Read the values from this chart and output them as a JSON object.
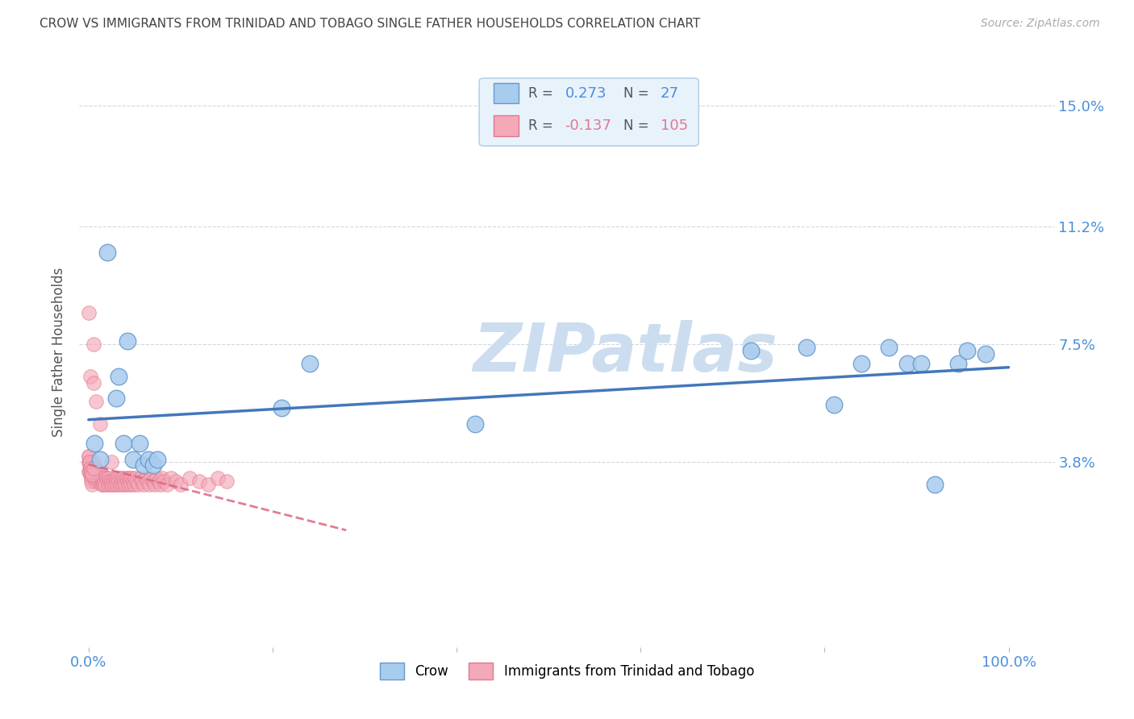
{
  "title": "CROW VS IMMIGRANTS FROM TRINIDAD AND TOBAGO SINGLE FATHER HOUSEHOLDS CORRELATION CHART",
  "source": "Source: ZipAtlas.com",
  "ylabel": "Single Father Households",
  "xlim": [
    -0.01,
    1.05
  ],
  "ylim": [
    -0.02,
    0.165
  ],
  "yticks": [
    0.038,
    0.075,
    0.112,
    0.15
  ],
  "yticklabels": [
    "3.8%",
    "7.5%",
    "11.2%",
    "15.0%"
  ],
  "xtick_left": "0.0%",
  "xtick_right": "100.0%",
  "grid_color": "#d0d8e0",
  "background_color": "#ffffff",
  "title_color": "#444444",
  "axis_tick_color": "#4a90d9",
  "crow_color": "#a8ccee",
  "crow_edge_color": "#6699cc",
  "trinidad_color": "#f4a8b8",
  "trinidad_edge_color": "#e07890",
  "trend_crow_color": "#4477bb",
  "trend_trinidad_color": "#dd6680",
  "legend_box_facecolor": "#e8f2fb",
  "legend_box_edgecolor": "#b8d0e8",
  "crow_R": 0.273,
  "crow_N": 27,
  "trinidad_R": -0.137,
  "trinidad_N": 105,
  "crow_x": [
    0.006,
    0.012,
    0.02,
    0.03,
    0.033,
    0.038,
    0.042,
    0.048,
    0.055,
    0.06,
    0.065,
    0.07,
    0.075,
    0.21,
    0.42,
    0.72,
    0.78,
    0.81,
    0.84,
    0.87,
    0.89,
    0.905,
    0.92,
    0.945,
    0.955,
    0.975,
    0.24
  ],
  "crow_y": [
    0.044,
    0.039,
    0.104,
    0.058,
    0.065,
    0.044,
    0.076,
    0.039,
    0.044,
    0.037,
    0.039,
    0.037,
    0.039,
    0.055,
    0.05,
    0.073,
    0.074,
    0.056,
    0.069,
    0.074,
    0.069,
    0.069,
    0.031,
    0.069,
    0.073,
    0.072,
    0.069
  ],
  "trinidad_x_dense": [
    0.0,
    0.0,
    0.0,
    0.001,
    0.001,
    0.001,
    0.002,
    0.002,
    0.003,
    0.003,
    0.003,
    0.004,
    0.004,
    0.005,
    0.005,
    0.005,
    0.006,
    0.006,
    0.007,
    0.007,
    0.007,
    0.008,
    0.008,
    0.009,
    0.009,
    0.01,
    0.01,
    0.011,
    0.011,
    0.012,
    0.012,
    0.013,
    0.013,
    0.014,
    0.014,
    0.015,
    0.015,
    0.016,
    0.016,
    0.017,
    0.018,
    0.019,
    0.02,
    0.021,
    0.022,
    0.023,
    0.024,
    0.025,
    0.026,
    0.027,
    0.028,
    0.029,
    0.03,
    0.031,
    0.032,
    0.033,
    0.034,
    0.035,
    0.036,
    0.037,
    0.038,
    0.039,
    0.04,
    0.041,
    0.042,
    0.043,
    0.044,
    0.045,
    0.046,
    0.047,
    0.048,
    0.049,
    0.05,
    0.052,
    0.054,
    0.056,
    0.058,
    0.06,
    0.062,
    0.064,
    0.066,
    0.068,
    0.07,
    0.072,
    0.074,
    0.076,
    0.078,
    0.08,
    0.082,
    0.085,
    0.09,
    0.095,
    0.1,
    0.11,
    0.12,
    0.13,
    0.14,
    0.15,
    0.0,
    0.001,
    0.002,
    0.003,
    0.004,
    0.005
  ],
  "trinidad_y_dense": [
    0.038,
    0.035,
    0.04,
    0.038,
    0.035,
    0.037,
    0.036,
    0.034,
    0.036,
    0.033,
    0.032,
    0.035,
    0.031,
    0.036,
    0.034,
    0.038,
    0.035,
    0.033,
    0.034,
    0.036,
    0.032,
    0.035,
    0.033,
    0.036,
    0.034,
    0.035,
    0.033,
    0.034,
    0.032,
    0.035,
    0.033,
    0.034,
    0.032,
    0.033,
    0.031,
    0.034,
    0.032,
    0.033,
    0.031,
    0.032,
    0.031,
    0.033,
    0.032,
    0.031,
    0.033,
    0.032,
    0.031,
    0.032,
    0.031,
    0.032,
    0.031,
    0.033,
    0.032,
    0.031,
    0.033,
    0.032,
    0.031,
    0.033,
    0.032,
    0.031,
    0.033,
    0.032,
    0.031,
    0.033,
    0.032,
    0.031,
    0.033,
    0.032,
    0.031,
    0.033,
    0.032,
    0.031,
    0.033,
    0.032,
    0.031,
    0.033,
    0.032,
    0.031,
    0.033,
    0.032,
    0.031,
    0.033,
    0.032,
    0.031,
    0.033,
    0.032,
    0.031,
    0.033,
    0.032,
    0.031,
    0.033,
    0.032,
    0.031,
    0.033,
    0.032,
    0.031,
    0.033,
    0.032,
    0.04,
    0.038,
    0.036,
    0.035,
    0.034,
    0.036
  ],
  "trinidad_x_outliers": [
    0.0,
    0.002,
    0.005,
    0.008,
    0.012,
    0.025,
    0.005
  ],
  "trinidad_y_outliers": [
    0.085,
    0.065,
    0.063,
    0.057,
    0.05,
    0.038,
    0.075
  ],
  "crow_trend_x": [
    0.0,
    1.0
  ],
  "crow_trend_y": [
    0.038,
    0.058
  ],
  "trinidad_trend_x": [
    0.0,
    0.25
  ],
  "trinidad_trend_y": [
    0.038,
    0.02
  ],
  "watermark_text": "ZIPatlas",
  "watermark_color": "#ccddef"
}
